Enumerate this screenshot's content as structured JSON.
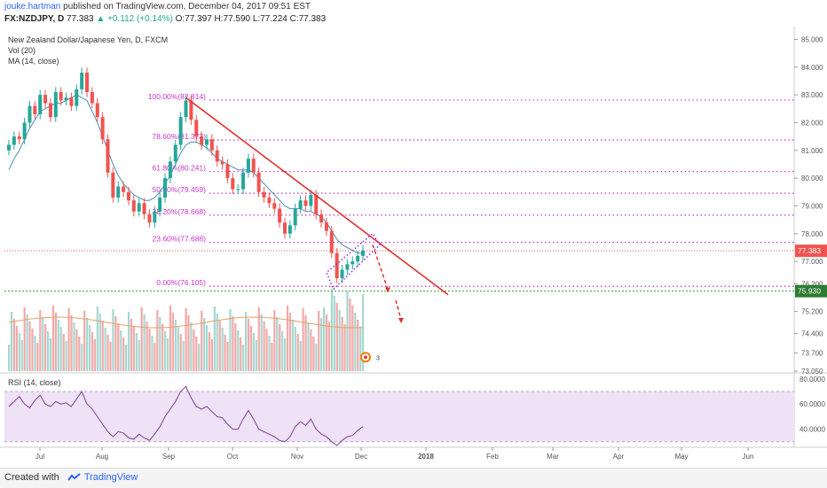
{
  "header": {
    "author": "jouke.hartman",
    "published_text": "published on TradingView.com, December 04, 2017 09:51 EST",
    "symbol": "FX:NZDJPY, D",
    "last": "77.383",
    "change": "▲ +0.112 (+0.14%)",
    "ohlc": "O:77.397 H:77.590 L:77.224 C:77.383"
  },
  "legend": {
    "title": "New Zealand Dollar/Japanese Yen, D, FXCM",
    "vol": "Vol (20)",
    "ma": "MA (14, close)",
    "rsi": "RSI (14, close)"
  },
  "footer": {
    "created_with": "Created with",
    "brand": "TradingView"
  },
  "colors": {
    "up": "#26a69a",
    "down": "#ef5350",
    "fib": "#cc33cc",
    "trend": "#e0312f",
    "ma": "#4a90b8",
    "rsi": "#7b3f8f",
    "rsi_band": "#efe2f7"
  },
  "chart_data": [
    {
      "type": "candlestick",
      "title": "New Zealand Dollar/Japanese Yen, D, FXCM",
      "x_ticks": [
        "Jul",
        "Aug",
        "Sep",
        "Oct",
        "Nov",
        "Dec",
        "2018",
        "Feb",
        "Mar",
        "Apr",
        "May",
        "Jun"
      ],
      "y_ticks": [
        "85.000",
        "84.000",
        "83.000",
        "82.000",
        "81.000",
        "80.000",
        "79.000",
        "78.000",
        "77.000",
        "76.200",
        "75.200",
        "74.400",
        "73.700",
        "73.050"
      ],
      "ylim": [
        73.05,
        85.3
      ],
      "price_path": [
        81.2,
        81.5,
        81.4,
        82.0,
        82.6,
        82.3,
        83.0,
        82.7,
        82.2,
        83.1,
        82.8,
        82.9,
        82.6,
        83.2,
        83.8,
        83.1,
        82.7,
        82.2,
        81.4,
        80.2,
        79.3,
        79.7,
        79.5,
        79.2,
        78.8,
        79.1,
        78.7,
        78.4,
        78.8,
        79.3,
        80.0,
        80.6,
        81.2,
        82.2,
        82.8,
        82.1,
        81.5,
        81.2,
        81.4,
        81.0,
        80.6,
        80.5,
        80.0,
        79.6,
        79.6,
        80.2,
        80.7,
        80.2,
        79.5,
        79.3,
        79.1,
        78.9,
        78.4,
        78.0,
        78.3,
        78.9,
        79.2,
        79.0,
        79.4,
        78.7,
        78.4,
        78.1,
        77.3,
        76.4,
        76.7,
        76.9,
        77.0,
        77.2,
        77.4
      ],
      "ma_path": [
        80.3,
        80.7,
        81.0,
        81.4,
        81.8,
        82.1,
        82.4,
        82.5,
        82.6,
        82.7,
        82.7,
        82.8,
        82.9,
        83.0,
        82.9,
        82.8,
        82.4,
        82.0,
        81.5,
        81.0,
        80.5,
        80.1,
        79.8,
        79.6,
        79.4,
        79.3,
        79.2,
        79.2,
        79.3,
        79.5,
        79.8,
        80.1,
        80.5,
        80.9,
        81.2,
        81.3,
        81.3,
        81.2,
        81.1,
        80.9,
        80.7,
        80.6,
        80.5,
        80.4,
        80.3,
        80.3,
        80.3,
        80.2,
        80.0,
        79.8,
        79.6,
        79.4,
        79.2,
        79.0,
        78.9,
        78.9,
        78.9,
        78.8,
        78.8,
        78.7,
        78.6,
        78.4,
        78.1,
        77.8,
        77.6,
        77.5,
        77.4,
        77.3,
        77.3
      ],
      "fib_levels": [
        {
          "label": "100.00%(82.814)",
          "value": 82.814
        },
        {
          "label": "78.60%(81.373)",
          "value": 81.373
        },
        {
          "label": "61.80%(80.241)",
          "value": 80.241
        },
        {
          "label": "50.00%(79.459)",
          "value": 79.459
        },
        {
          "label": "38.20%(78.668)",
          "value": 78.668
        },
        {
          "label": "23.60%(77.688)",
          "value": 77.688
        },
        {
          "label": "0.00%(76.105)",
          "value": 76.105
        }
      ],
      "last_price": "77.383",
      "support_price": "75.930",
      "annotations": [
        "3"
      ]
    },
    {
      "type": "line",
      "title": "RSI (14, close)",
      "y_ticks": [
        "80.0000",
        "60.0000",
        "40.0000"
      ],
      "ylim": [
        27,
        82
      ],
      "band": [
        30,
        70
      ],
      "values": [
        58,
        62,
        66,
        60,
        57,
        63,
        67,
        60,
        58,
        62,
        60,
        61,
        58,
        64,
        70,
        60,
        56,
        50,
        44,
        38,
        34,
        38,
        37,
        33,
        32,
        36,
        33,
        31,
        36,
        42,
        50,
        56,
        62,
        70,
        74,
        65,
        58,
        56,
        58,
        54,
        50,
        49,
        44,
        40,
        40,
        48,
        55,
        48,
        40,
        38,
        36,
        34,
        31,
        30,
        34,
        42,
        46,
        43,
        48,
        40,
        36,
        34,
        30,
        27,
        31,
        34,
        35,
        39,
        42
      ]
    }
  ]
}
